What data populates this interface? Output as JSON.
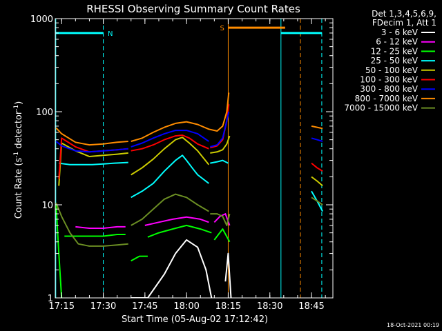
{
  "chart_data": {
    "type": "line",
    "title": "RHESSI Observing Summary Count Rates",
    "xlabel": "Start Time (05-Aug-02 17:12:42)",
    "ylabel_main": "Count Rate (s",
    "ylabel_sup1": "-1",
    "ylabel_mid": " detector",
    "ylabel_sup2": "-1",
    "ylabel_end": ")",
    "footer": "18-Oct-2021 00:19",
    "x_axis": {
      "unit": "minutes",
      "range": [
        1032.7,
        1132.7
      ],
      "ticks": [
        {
          "value": 1035,
          "label": "17:15"
        },
        {
          "value": 1050,
          "label": "17:30"
        },
        {
          "value": 1065,
          "label": "17:45"
        },
        {
          "value": 1080,
          "label": "18:00"
        },
        {
          "value": 1095,
          "label": "18:15"
        },
        {
          "value": 1110,
          "label": "18:30"
        },
        {
          "value": 1125,
          "label": "18:45"
        }
      ]
    },
    "y_axis": {
      "scale": "log",
      "range": [
        1,
        1000
      ],
      "major_ticks": [
        {
          "value": 1,
          "label": "1"
        },
        {
          "value": 10,
          "label": "10"
        },
        {
          "value": 100,
          "label": "100"
        },
        {
          "value": 1000,
          "label": "1000"
        }
      ]
    },
    "legend": {
      "header": [
        "Det 1,3,4,5,6,9,",
        "FDecim 1, Att 1"
      ],
      "placement": "right"
    },
    "flags": [
      {
        "label": "N",
        "color": "#00ffff",
        "x_start": 1032.7,
        "x_end": 1050.0,
        "y": 700
      },
      {
        "label": "S",
        "color": "#ff8c00",
        "x_start": 1095.0,
        "x_end": 1115.5,
        "y": 800
      },
      {
        "label": "",
        "color": "#00ffff",
        "x_start": 1114.0,
        "x_end": 1128.7,
        "y": 700
      }
    ],
    "markers": [
      {
        "x": 1032.9,
        "color": "#00ffff",
        "style": "solid"
      },
      {
        "x": 1050.0,
        "color": "#00ffff",
        "style": "dashed"
      },
      {
        "x": 1095.0,
        "color": "#ff8c00",
        "style": "solid"
      },
      {
        "x": 1114.0,
        "color": "#00ffff",
        "style": "solid"
      },
      {
        "x": 1121.0,
        "color": "#ff8c00",
        "style": "dashed"
      },
      {
        "x": 1128.7,
        "color": "#00ffff",
        "style": "dashed"
      }
    ],
    "series": [
      {
        "name": "3 - 6 keV",
        "color": "#ffffff",
        "segments": [
          {
            "x": [
              1060.0,
              1066.0,
              1072.0,
              1076.0,
              1080.0,
              1084.0,
              1087.0,
              1089.0
            ],
            "y": [
              1,
              1,
              1.8,
              3.0,
              4.2,
              3.5,
              2.0,
              1
            ]
          },
          {
            "x": [
              1094.0,
              1095.0,
              1096.0
            ],
            "y": [
              1.5,
              3.0,
              1.0
            ]
          }
        ]
      },
      {
        "name": "6 - 12 keV",
        "color": "#ff00ff",
        "segments": [
          {
            "x": [
              1040.0,
              1045.0,
              1050.0,
              1055.0,
              1058.0
            ],
            "y": [
              5.8,
              5.6,
              5.6,
              5.8,
              5.8
            ]
          },
          {
            "x": [
              1065.0,
              1070.0,
              1075.0,
              1080.0,
              1085.0,
              1088.0
            ],
            "y": [
              6.0,
              6.5,
              7.0,
              7.4,
              7.0,
              6.5
            ]
          },
          {
            "x": [
              1090.0,
              1092.0,
              1094.0,
              1095.5
            ],
            "y": [
              6.5,
              7.5,
              8.0,
              6.0
            ]
          }
        ]
      },
      {
        "name": "12 - 25 keV",
        "color": "#00ff00",
        "segments": [
          {
            "x": [
              1033.0,
              1034.0,
              1035.0
            ],
            "y": [
              10,
              3.0,
              1.0
            ]
          },
          {
            "x": [
              1036.0,
              1045.0,
              1050.0,
              1055.0,
              1058.0
            ],
            "y": [
              4.6,
              4.6,
              4.6,
              4.8,
              4.8
            ]
          },
          {
            "x": [
              1060.0,
              1063.0,
              1066.0
            ],
            "y": [
              2.5,
              2.8,
              2.8
            ]
          },
          {
            "x": [
              1066.0,
              1070.0,
              1075.0,
              1080.0,
              1085.0,
              1089.0
            ],
            "y": [
              4.5,
              5.0,
              5.5,
              6.0,
              5.5,
              5.0
            ]
          },
          {
            "x": [
              1090.0,
              1093.0,
              1095.5
            ],
            "y": [
              4.2,
              5.5,
              4.0
            ]
          }
        ]
      },
      {
        "name": "25 - 50 keV",
        "color": "#00ffff",
        "segments": [
          {
            "x": [
              1034.0,
              1038.0,
              1042.0,
              1046.0,
              1050.0,
              1054.0,
              1059.0
            ],
            "y": [
              28.0,
              27.0,
              27.0,
              27.0,
              27.5,
              28.0,
              28.5
            ]
          },
          {
            "x": [
              1060.0,
              1064.0,
              1068.0,
              1072.0,
              1076.0,
              1078.5,
              1080.0,
              1082.0,
              1084.0,
              1088.0
            ],
            "y": [
              12.0,
              14.0,
              17.0,
              23.0,
              30.0,
              34.0,
              30.0,
              25.0,
              21.0,
              17.0
            ]
          },
          {
            "x": [
              1088.5,
              1091.0,
              1093.0,
              1095.0
            ],
            "y": [
              28.0,
              29.0,
              30.0,
              28.0
            ]
          },
          {
            "x": [
              1125.0,
              1127.0,
              1129.0
            ],
            "y": [
              14.0,
              11.0,
              8.5
            ]
          }
        ]
      },
      {
        "name": "50 - 100 keV",
        "color": "#cccc00",
        "segments": [
          {
            "x": [
              1034.0,
              1035.0,
              1040.0,
              1045.0,
              1050.0,
              1055.0,
              1059.0
            ],
            "y": [
              16.0,
              46.0,
              38.0,
              33.0,
              34.0,
              35.0,
              36.0
            ]
          },
          {
            "x": [
              1060.0,
              1064.0,
              1068.0,
              1072.0,
              1076.0,
              1078.5,
              1081.0,
              1084.0,
              1088.0
            ],
            "y": [
              21.0,
              25.0,
              31.0,
              40.0,
              50.0,
              53.0,
              46.0,
              38.0,
              27.0
            ]
          },
          {
            "x": [
              1088.5,
              1091.0,
              1093.0,
              1094.5,
              1095.5
            ],
            "y": [
              36.0,
              37.0,
              39.0,
              45.0,
              55.0
            ]
          },
          {
            "x": [
              1125.0,
              1127.0,
              1129.0
            ],
            "y": [
              20.0,
              18.0,
              16.0
            ]
          }
        ]
      },
      {
        "name": "100 - 300 keV",
        "color": "#ff0000",
        "segments": [
          {
            "x": [
              1034.0,
              1035.0,
              1040.0,
              1045.0,
              1050.0,
              1055.0,
              1059.0
            ],
            "y": [
              19.0,
              52.0,
              42.0,
              37.0,
              38.0,
              39.0,
              40.0
            ]
          },
          {
            "x": [
              1060.0,
              1064.0,
              1068.0,
              1072.0,
              1076.0,
              1078.5,
              1081.0,
              1084.0,
              1088.0
            ],
            "y": [
              38.0,
              40.0,
              44.0,
              50.0,
              55.0,
              56.0,
              52.0,
              45.0,
              40.0
            ]
          },
          {
            "x": [
              1088.5,
              1091.0,
              1093.0,
              1094.5,
              1095.2
            ],
            "y": [
              41.0,
              43.0,
              50.0,
              80.0,
              120.0
            ]
          },
          {
            "x": [
              1125.0,
              1127.0,
              1129.0
            ],
            "y": [
              28.0,
              25.0,
              23.0
            ]
          }
        ]
      },
      {
        "name": "300 - 800 keV",
        "color": "#0000ff",
        "segments": [
          {
            "x": [
              1033.0,
              1035.0,
              1040.0,
              1045.0,
              1050.0,
              1055.0,
              1059.0
            ],
            "y": [
              48.0,
              43.0,
              38.0,
              37.0,
              38.0,
              39.0,
              40.0
            ]
          },
          {
            "x": [
              1060.0,
              1064.0,
              1068.0,
              1072.0,
              1076.0,
              1080.0,
              1084.0,
              1088.0
            ],
            "y": [
              42.0,
              46.0,
              52.0,
              58.0,
              63.0,
              63.0,
              58.0,
              48.0
            ]
          },
          {
            "x": [
              1088.5,
              1091.0,
              1093.0,
              1094.5,
              1095.2
            ],
            "y": [
              42.0,
              44.0,
              52.0,
              80.0,
              100.0
            ]
          },
          {
            "x": [
              1125.0,
              1127.0,
              1129.0
            ],
            "y": [
              52.0,
              50.0,
              48.0
            ]
          }
        ]
      },
      {
        "name": "800 - 7000 keV",
        "color": "#ff8c00",
        "segments": [
          {
            "x": [
              1033.0,
              1035.0,
              1040.0,
              1045.0,
              1050.0,
              1055.0,
              1059.0
            ],
            "y": [
              67.0,
              58.0,
              47.0,
              44.0,
              45.0,
              47.0,
              48.0
            ]
          },
          {
            "x": [
              1060.0,
              1064.0,
              1068.0,
              1072.0,
              1076.0,
              1080.0,
              1084.0,
              1088.0,
              1091.0,
              1093.0,
              1094.5,
              1095.2
            ],
            "y": [
              48.0,
              52.0,
              60.0,
              68.0,
              75.0,
              78.0,
              73.0,
              65.0,
              62.0,
              70.0,
              100.0,
              160.0
            ]
          },
          {
            "x": [
              1125.0,
              1127.0,
              1129.0
            ],
            "y": [
              70.0,
              68.0,
              66.0
            ]
          }
        ]
      },
      {
        "name": "7000 - 15000 keV",
        "color": "#6b8e23",
        "segments": [
          {
            "x": [
              1033.0,
              1035.0,
              1038.0,
              1041.0,
              1045.0,
              1050.0,
              1055.0,
              1059.0
            ],
            "y": [
              10.5,
              7.5,
              5.0,
              3.8,
              3.6,
              3.6,
              3.7,
              3.8
            ]
          },
          {
            "x": [
              1060.0,
              1064.0,
              1068.0,
              1072.0,
              1076.0,
              1080.0,
              1084.0,
              1088.0
            ],
            "y": [
              6.0,
              7.0,
              9.0,
              11.5,
              13.0,
              12.0,
              10.0,
              8.5
            ]
          },
          {
            "x": [
              1088.5,
              1091.0,
              1093.0,
              1094.5,
              1095.5
            ],
            "y": [
              8.0,
              8.0,
              7.5,
              6.0,
              8.0
            ]
          },
          {
            "x": [
              1125.0,
              1127.0,
              1129.0
            ],
            "y": [
              12.0,
              11.0,
              10.0
            ]
          }
        ]
      }
    ]
  }
}
